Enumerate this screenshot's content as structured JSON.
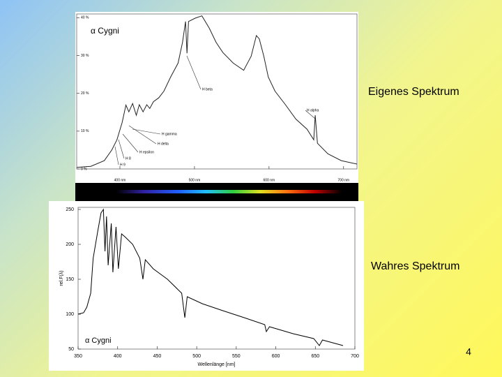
{
  "slide": {
    "label_top": "Eigenes Spektrum",
    "label_bottom": "Wahres Spektrum",
    "page_number": "4"
  },
  "chart_data": [
    {
      "type": "line",
      "title": "α Cygni",
      "annotations": [
        "H beta",
        "H alpha",
        "H gamma",
        "H delta",
        "H epsilon",
        "H 8",
        "H 9"
      ],
      "xlim": [
        342,
        718
      ],
      "xticks": [
        {
          "value": 400,
          "label": "400 nm"
        },
        {
          "value": 500,
          "label": "500 nm"
        },
        {
          "value": 600,
          "label": "600 nm"
        },
        {
          "value": 700,
          "label": "700 nm"
        }
      ],
      "ylim": [
        0,
        41
      ],
      "yticks": [
        {
          "value": 0,
          "label": "0 %"
        },
        {
          "value": 10,
          "label": "10 %"
        },
        {
          "value": 20,
          "label": "20 %"
        },
        {
          "value": 30,
          "label": "30 %"
        },
        {
          "value": 40,
          "label": "40 %"
        }
      ],
      "series": [
        {
          "color": "#222222",
          "x": [
            342,
            361,
            379,
            389,
            396,
            403,
            408,
            412,
            417,
            422,
            426,
            431,
            436,
            440,
            445,
            452,
            459,
            468,
            478,
            484,
            488,
            490,
            492,
            501,
            510,
            520,
            529,
            538,
            552,
            566,
            576,
            583,
            587,
            593,
            599,
            608,
            622,
            636,
            651,
            660,
            662,
            665,
            679,
            697,
            718
          ],
          "values": [
            0.4,
            0.7,
            2.2,
            5.0,
            7.7,
            12.3,
            16.9,
            15.1,
            17.3,
            14.2,
            17.0,
            15.1,
            17.0,
            16.0,
            17.8,
            18.8,
            20.6,
            24.3,
            28.0,
            33.5,
            39.0,
            30.6,
            39.0,
            39.9,
            40.5,
            37.2,
            33.5,
            30.8,
            28.0,
            26.1,
            29.8,
            35.3,
            34.4,
            29.8,
            24.3,
            20.6,
            17.0,
            13.2,
            10.5,
            7.7,
            14.2,
            6.8,
            4.0,
            2.2,
            1.3
          ]
        }
      ]
    },
    {
      "type": "line",
      "title": "α Cygni",
      "xlabel": "Wellenlänge [nm]",
      "ylabel": "rel.F(λ)",
      "xlim": [
        350,
        700
      ],
      "xticks": [
        350,
        400,
        450,
        500,
        550,
        600,
        650,
        700
      ],
      "ylim": [
        50,
        253
      ],
      "yticks": [
        50,
        100,
        150,
        200,
        250
      ],
      "series": [
        {
          "color": "#000000",
          "x": [
            350,
            357,
            361,
            366,
            369,
            375,
            379,
            382,
            384,
            386,
            388,
            392,
            394,
            398,
            401,
            405,
            410,
            419,
            428,
            432,
            435,
            445,
            463,
            481,
            485,
            488,
            507,
            533,
            560,
            586,
            588,
            592,
            622,
            648,
            655,
            659,
            685
          ],
          "values": [
            100,
            102,
            110,
            130,
            180,
            220,
            245,
            250,
            190,
            240,
            170,
            230,
            160,
            225,
            165,
            215,
            210,
            200,
            180,
            150,
            178,
            165,
            150,
            130,
            95,
            125,
            115,
            105,
            95,
            85,
            75,
            82,
            72,
            65,
            55,
            63,
            55
          ]
        }
      ]
    }
  ]
}
